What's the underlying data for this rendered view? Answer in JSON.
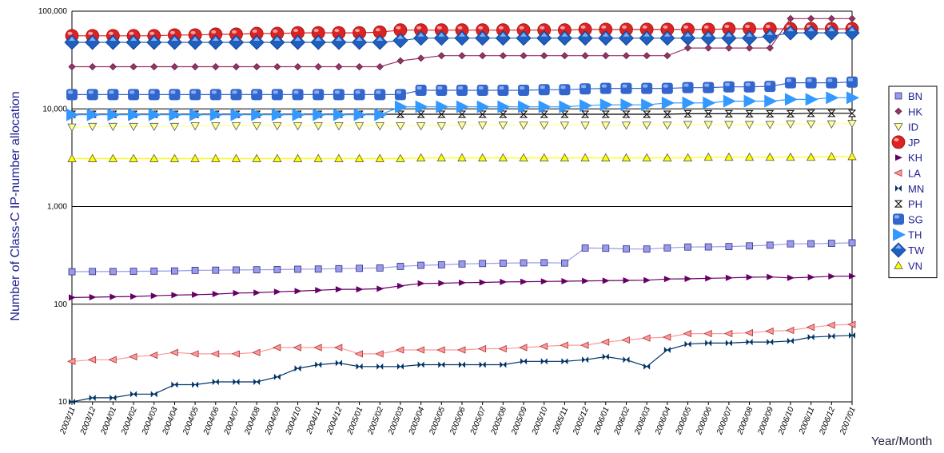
{
  "chart_data": {
    "type": "line",
    "title": "",
    "ylabel": "Number of Class-C IP-number  allocation",
    "xlabel": "Year/Month",
    "yscale": "log",
    "ylim": [
      10,
      100000
    ],
    "yticks": [
      10,
      100,
      1000,
      10000,
      100000
    ],
    "ytick_labels": [
      "10",
      "100",
      "1,000",
      "10,000",
      "100,000"
    ],
    "grid": "horizontal",
    "legend_position": "right",
    "categories": [
      "2003/11",
      "2003/12",
      "2004/01",
      "2004/02",
      "2004/03",
      "2004/04",
      "2004/05",
      "2004/06",
      "2004/07",
      "2004/08",
      "2004/09",
      "2004/10",
      "2004/11",
      "2004/12",
      "2005/01",
      "2005/02",
      "2005/03",
      "2005/04",
      "2005/05",
      "2005/06",
      "2005/07",
      "2005/08",
      "2005/09",
      "2005/10",
      "2005/11",
      "2005/12",
      "2006/01",
      "2006/02",
      "2006/03",
      "2006/04",
      "2006/05",
      "2006/06",
      "2006/07",
      "2006/08",
      "2006/09",
      "2006/10",
      "2006/11",
      "2006/12",
      "2007/01"
    ],
    "series": [
      {
        "name": "BN",
        "color": "#9999ee",
        "marker": "square",
        "values": [
          215,
          216,
          216,
          217,
          218,
          219,
          222,
          223,
          224,
          225,
          226,
          228,
          229,
          231,
          233,
          235,
          244,
          250,
          253,
          258,
          261,
          263,
          265,
          266,
          264,
          376,
          374,
          368,
          367,
          377,
          385,
          386,
          389,
          395,
          402,
          415,
          416,
          420,
          425
        ]
      },
      {
        "name": "HK",
        "color": "#993366",
        "marker": "diamond-small",
        "values": [
          27000,
          27000,
          27000,
          27000,
          27000,
          27000,
          27000,
          27000,
          27000,
          27000,
          27000,
          27000,
          27000,
          27000,
          27000,
          27000,
          31000,
          33000,
          35000,
          35000,
          35000,
          35000,
          35000,
          35000,
          35000,
          35000,
          35000,
          35000,
          35000,
          35000,
          42000,
          42000,
          42000,
          42000,
          42000,
          84000,
          84000,
          84000,
          84000
        ]
      },
      {
        "name": "ID",
        "color": "#ffff99",
        "marker": "triangle-down",
        "values": [
          6500,
          6600,
          6600,
          6600,
          6600,
          6600,
          6700,
          6700,
          6700,
          6700,
          6700,
          6700,
          6700,
          6700,
          6700,
          6700,
          6700,
          6700,
          6700,
          6800,
          6800,
          6800,
          6800,
          6800,
          6800,
          6800,
          6800,
          6800,
          6800,
          6800,
          6900,
          6900,
          6900,
          6900,
          6900,
          7000,
          7000,
          7000,
          7100
        ]
      },
      {
        "name": "JP",
        "color": "#dd2222",
        "marker": "sphere",
        "values": [
          56000,
          56000,
          56000,
          56000,
          56000,
          57000,
          57000,
          58000,
          58000,
          59000,
          59000,
          60000,
          60000,
          60000,
          60000,
          61000,
          64000,
          64000,
          64000,
          64000,
          64000,
          64000,
          64000,
          64000,
          64000,
          65000,
          65000,
          65000,
          65000,
          65000,
          65000,
          65000,
          66000,
          66000,
          66000,
          66000,
          66000,
          66000,
          66000
        ]
      },
      {
        "name": "KH",
        "color": "#660066",
        "marker": "triangle-right",
        "values": [
          117,
          118,
          119,
          120,
          122,
          124,
          125,
          127,
          130,
          131,
          134,
          136,
          139,
          142,
          142,
          144,
          154,
          163,
          164,
          166,
          167,
          169,
          170,
          171,
          172,
          173,
          174,
          175,
          176,
          181,
          182,
          184,
          186,
          189,
          190,
          186,
          189,
          193,
          194
        ]
      },
      {
        "name": "LA",
        "color": "#ff9999",
        "marker": "triangle-left",
        "values": [
          26,
          27,
          27,
          29,
          30,
          32,
          31,
          31,
          31,
          32,
          36,
          36,
          36,
          36,
          31,
          31,
          34,
          34,
          34,
          34,
          35,
          35,
          36,
          37,
          38,
          38,
          41,
          43,
          45,
          46,
          50,
          50,
          50,
          51,
          53,
          54,
          58,
          61,
          62
        ]
      },
      {
        "name": "MN",
        "color": "#003366",
        "marker": "bowtie",
        "values": [
          10,
          11,
          11,
          12,
          12,
          15,
          15,
          16,
          16,
          16,
          18,
          22,
          24,
          25,
          23,
          23,
          23,
          24,
          24,
          24,
          24,
          24,
          26,
          26,
          26,
          27,
          29,
          27,
          23,
          34,
          39,
          40,
          40,
          41,
          41,
          42,
          46,
          47,
          48
        ]
      },
      {
        "name": "PH",
        "color": "#000000",
        "marker": "hourglass",
        "values": [
          8800,
          8800,
          8800,
          8800,
          8800,
          8800,
          8800,
          8800,
          8800,
          8800,
          8800,
          8800,
          8800,
          8800,
          8800,
          8800,
          8800,
          8800,
          8800,
          8800,
          8800,
          8800,
          8800,
          8800,
          8800,
          8800,
          8800,
          8800,
          8800,
          8800,
          8900,
          8900,
          8900,
          8900,
          8900,
          8900,
          9000,
          9000,
          9000
        ]
      },
      {
        "name": "SG",
        "color": "#3366cc",
        "marker": "cube",
        "values": [
          14000,
          14000,
          14000,
          14000,
          14000,
          14000,
          14000,
          14000,
          14000,
          14000,
          14000,
          14000,
          14000,
          14000,
          14000,
          14000,
          14000,
          15500,
          15500,
          15500,
          15500,
          15500,
          15500,
          15700,
          15700,
          16000,
          16200,
          16200,
          16200,
          16200,
          16500,
          16500,
          16800,
          16800,
          17000,
          18500,
          18500,
          18500,
          18800
        ]
      },
      {
        "name": "TH",
        "color": "#3399ff",
        "marker": "triangle-right-big",
        "values": [
          8700,
          8700,
          8700,
          8700,
          8700,
          8700,
          8700,
          8700,
          8700,
          8700,
          8700,
          8700,
          8700,
          8700,
          8700,
          8700,
          10500,
          10500,
          10500,
          10500,
          10500,
          10500,
          10500,
          10500,
          10500,
          10800,
          11000,
          11000,
          11000,
          11500,
          11500,
          11500,
          12000,
          12000,
          12000,
          12500,
          12500,
          13000,
          13000
        ]
      },
      {
        "name": "TW",
        "color": "#1f5fbf",
        "marker": "diamond-big",
        "values": [
          48000,
          48000,
          48000,
          48000,
          48000,
          48000,
          48000,
          48000,
          48000,
          48000,
          48000,
          48000,
          48000,
          48000,
          48000,
          48000,
          50000,
          53000,
          53000,
          53000,
          53000,
          53000,
          53000,
          53000,
          53000,
          53000,
          53000,
          53000,
          53000,
          53000,
          53000,
          53000,
          53000,
          53000,
          55000,
          60000,
          60000,
          60000,
          60000
        ]
      },
      {
        "name": "VN",
        "color": "#ffff00",
        "marker": "triangle-up",
        "values": [
          3100,
          3100,
          3100,
          3100,
          3100,
          3100,
          3100,
          3100,
          3100,
          3100,
          3100,
          3100,
          3100,
          3100,
          3100,
          3100,
          3100,
          3150,
          3150,
          3150,
          3150,
          3150,
          3150,
          3150,
          3150,
          3150,
          3150,
          3150,
          3150,
          3150,
          3150,
          3200,
          3200,
          3200,
          3200,
          3200,
          3200,
          3250,
          3250
        ]
      }
    ]
  }
}
